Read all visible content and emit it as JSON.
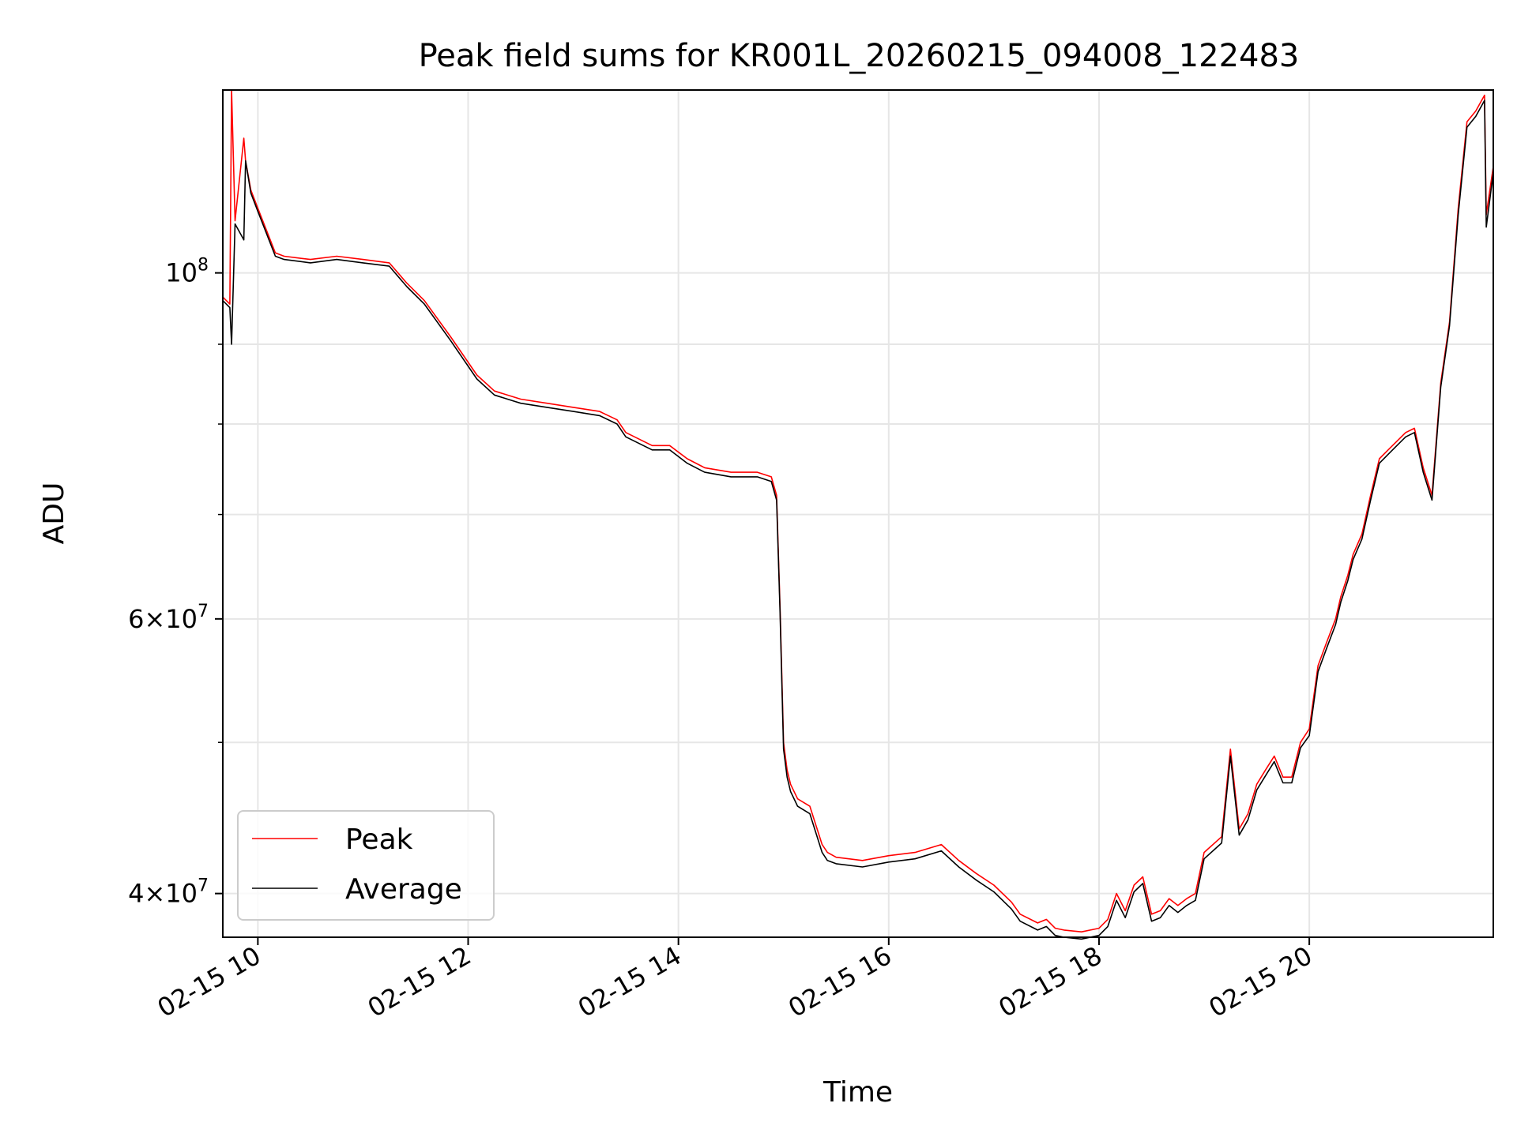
{
  "chart_data": {
    "type": "line",
    "title": "Peak field sums for KR001L_20260215_094008_122483",
    "xlabel": "Time",
    "ylabel": "ADU",
    "x_scale": "time",
    "y_scale": "log",
    "xlim": [
      "2026-02-15 09:40",
      "2026-02-15 21:45"
    ],
    "ylim": [
      37500000,
      131000000
    ],
    "grid": true,
    "legend_position": "lower-left",
    "x_ticks": [
      {
        "value": "2026-02-15 10:00",
        "label": "02-15 10"
      },
      {
        "value": "2026-02-15 12:00",
        "label": "02-15 12"
      },
      {
        "value": "2026-02-15 14:00",
        "label": "02-15 14"
      },
      {
        "value": "2026-02-15 16:00",
        "label": "02-15 16"
      },
      {
        "value": "2026-02-15 18:00",
        "label": "02-15 18"
      },
      {
        "value": "2026-02-15 20:00",
        "label": "02-15 20"
      }
    ],
    "y_ticks_major": [
      {
        "value": 40000000,
        "base": "4",
        "exp": "7"
      },
      {
        "value": 60000000,
        "base": "6",
        "exp": "7"
      },
      {
        "value": 100000000,
        "base": "",
        "exp": "8"
      }
    ],
    "y_ticks_minor": [
      50000000,
      70000000,
      80000000,
      90000000
    ],
    "series": [
      {
        "name": "Peak",
        "color": "#ff0000",
        "x": [
          "2026-02-15 09:40",
          "2026-02-15 09:44",
          "2026-02-15 09:45",
          "2026-02-15 09:47",
          "2026-02-15 09:52",
          "2026-02-15 09:53",
          "2026-02-15 09:56",
          "2026-02-15 10:00",
          "2026-02-15 10:10",
          "2026-02-15 10:15",
          "2026-02-15 10:30",
          "2026-02-15 10:45",
          "2026-02-15 11:00",
          "2026-02-15 11:15",
          "2026-02-15 11:25",
          "2026-02-15 11:35",
          "2026-02-15 11:50",
          "2026-02-15 12:05",
          "2026-02-15 12:15",
          "2026-02-15 12:30",
          "2026-02-15 12:45",
          "2026-02-15 13:00",
          "2026-02-15 13:15",
          "2026-02-15 13:25",
          "2026-02-15 13:30",
          "2026-02-15 13:45",
          "2026-02-15 13:55",
          "2026-02-15 14:05",
          "2026-02-15 14:15",
          "2026-02-15 14:30",
          "2026-02-15 14:45",
          "2026-02-15 14:53",
          "2026-02-15 14:56",
          "2026-02-15 14:58",
          "2026-02-15 15:00",
          "2026-02-15 15:02",
          "2026-02-15 15:04",
          "2026-02-15 15:08",
          "2026-02-15 15:15",
          "2026-02-15 15:22",
          "2026-02-15 15:25",
          "2026-02-15 15:30",
          "2026-02-15 15:45",
          "2026-02-15 16:00",
          "2026-02-15 16:15",
          "2026-02-15 16:30",
          "2026-02-15 16:40",
          "2026-02-15 16:50",
          "2026-02-15 17:00",
          "2026-02-15 17:10",
          "2026-02-15 17:15",
          "2026-02-15 17:25",
          "2026-02-15 17:30",
          "2026-02-15 17:35",
          "2026-02-15 17:40",
          "2026-02-15 17:50",
          "2026-02-15 18:00",
          "2026-02-15 18:05",
          "2026-02-15 18:10",
          "2026-02-15 18:15",
          "2026-02-15 18:20",
          "2026-02-15 18:25",
          "2026-02-15 18:30",
          "2026-02-15 18:35",
          "2026-02-15 18:40",
          "2026-02-15 18:45",
          "2026-02-15 18:50",
          "2026-02-15 18:55",
          "2026-02-15 19:00",
          "2026-02-15 19:10",
          "2026-02-15 19:15",
          "2026-02-15 19:20",
          "2026-02-15 19:25",
          "2026-02-15 19:30",
          "2026-02-15 19:35",
          "2026-02-15 19:40",
          "2026-02-15 19:45",
          "2026-02-15 19:50",
          "2026-02-15 19:55",
          "2026-02-15 20:00",
          "2026-02-15 20:05",
          "2026-02-15 20:10",
          "2026-02-15 20:15",
          "2026-02-15 20:18",
          "2026-02-15 20:22",
          "2026-02-15 20:25",
          "2026-02-15 20:30",
          "2026-02-15 20:35",
          "2026-02-15 20:40",
          "2026-02-15 20:45",
          "2026-02-15 20:50",
          "2026-02-15 20:55",
          "2026-02-15 21:00",
          "2026-02-15 21:05",
          "2026-02-15 21:10",
          "2026-02-15 21:15",
          "2026-02-15 21:20",
          "2026-02-15 21:25",
          "2026-02-15 21:30",
          "2026-02-15 21:35",
          "2026-02-15 21:40",
          "2026-02-15 21:41",
          "2026-02-15 21:45"
        ],
        "y": [
          96500000,
          95500000,
          131000000,
          108000000,
          122000000,
          118000000,
          113000000,
          110000000,
          103000000,
          102500000,
          102000000,
          102500000,
          102000000,
          101500000,
          98500000,
          96000000,
          91000000,
          86000000,
          84000000,
          83000000,
          82500000,
          82000000,
          81500000,
          80500000,
          79000000,
          77500000,
          77500000,
          76000000,
          75000000,
          74500000,
          74500000,
          74000000,
          72000000,
          61000000,
          50000000,
          48000000,
          47000000,
          46000000,
          45500000,
          43000000,
          42500000,
          42200000,
          42000000,
          42300000,
          42500000,
          43000000,
          42000000,
          41200000,
          40500000,
          39500000,
          38800000,
          38300000,
          38500000,
          38000000,
          37900000,
          37800000,
          38000000,
          38500000,
          40000000,
          39000000,
          40500000,
          41000000,
          38800000,
          39000000,
          39700000,
          39300000,
          39700000,
          40000000,
          42500000,
          43500000,
          49500000,
          44000000,
          45000000,
          47000000,
          48000000,
          49000000,
          47500000,
          47500000,
          50000000,
          51000000,
          56000000,
          58000000,
          60000000,
          62000000,
          64000000,
          66000000,
          68000000,
          72000000,
          76000000,
          77000000,
          78000000,
          79000000,
          79500000,
          75000000,
          72000000,
          85000000,
          93000000,
          110000000,
          125000000,
          127000000,
          130000000,
          109000000,
          117000000
        ]
      },
      {
        "name": "Average",
        "color": "#000000",
        "x": [
          "2026-02-15 09:40",
          "2026-02-15 09:44",
          "2026-02-15 09:45",
          "2026-02-15 09:47",
          "2026-02-15 09:52",
          "2026-02-15 09:53",
          "2026-02-15 09:56",
          "2026-02-15 10:00",
          "2026-02-15 10:10",
          "2026-02-15 10:15",
          "2026-02-15 10:30",
          "2026-02-15 10:45",
          "2026-02-15 11:00",
          "2026-02-15 11:15",
          "2026-02-15 11:25",
          "2026-02-15 11:35",
          "2026-02-15 11:50",
          "2026-02-15 12:05",
          "2026-02-15 12:15",
          "2026-02-15 12:30",
          "2026-02-15 12:45",
          "2026-02-15 13:00",
          "2026-02-15 13:15",
          "2026-02-15 13:25",
          "2026-02-15 13:30",
          "2026-02-15 13:45",
          "2026-02-15 13:55",
          "2026-02-15 14:05",
          "2026-02-15 14:15",
          "2026-02-15 14:30",
          "2026-02-15 14:45",
          "2026-02-15 14:53",
          "2026-02-15 14:56",
          "2026-02-15 14:58",
          "2026-02-15 15:00",
          "2026-02-15 15:02",
          "2026-02-15 15:04",
          "2026-02-15 15:08",
          "2026-02-15 15:15",
          "2026-02-15 15:22",
          "2026-02-15 15:25",
          "2026-02-15 15:30",
          "2026-02-15 15:45",
          "2026-02-15 16:00",
          "2026-02-15 16:15",
          "2026-02-15 16:30",
          "2026-02-15 16:40",
          "2026-02-15 16:50",
          "2026-02-15 17:00",
          "2026-02-15 17:10",
          "2026-02-15 17:15",
          "2026-02-15 17:25",
          "2026-02-15 17:30",
          "2026-02-15 17:35",
          "2026-02-15 17:40",
          "2026-02-15 17:50",
          "2026-02-15 18:00",
          "2026-02-15 18:05",
          "2026-02-15 18:10",
          "2026-02-15 18:15",
          "2026-02-15 18:20",
          "2026-02-15 18:25",
          "2026-02-15 18:30",
          "2026-02-15 18:35",
          "2026-02-15 18:40",
          "2026-02-15 18:45",
          "2026-02-15 18:50",
          "2026-02-15 18:55",
          "2026-02-15 19:00",
          "2026-02-15 19:10",
          "2026-02-15 19:15",
          "2026-02-15 19:20",
          "2026-02-15 19:25",
          "2026-02-15 19:30",
          "2026-02-15 19:35",
          "2026-02-15 19:40",
          "2026-02-15 19:45",
          "2026-02-15 19:50",
          "2026-02-15 19:55",
          "2026-02-15 20:00",
          "2026-02-15 20:05",
          "2026-02-15 20:10",
          "2026-02-15 20:15",
          "2026-02-15 20:18",
          "2026-02-15 20:22",
          "2026-02-15 20:25",
          "2026-02-15 20:30",
          "2026-02-15 20:35",
          "2026-02-15 20:40",
          "2026-02-15 20:45",
          "2026-02-15 20:50",
          "2026-02-15 20:55",
          "2026-02-15 21:00",
          "2026-02-15 21:05",
          "2026-02-15 21:10",
          "2026-02-15 21:15",
          "2026-02-15 21:20",
          "2026-02-15 21:25",
          "2026-02-15 21:30",
          "2026-02-15 21:35",
          "2026-02-15 21:40",
          "2026-02-15 21:41",
          "2026-02-15 21:45"
        ],
        "y": [
          96000000,
          95000000,
          90000000,
          107500000,
          105000000,
          118000000,
          112500000,
          109500000,
          102500000,
          102000000,
          101500000,
          102000000,
          101500000,
          101000000,
          98000000,
          95500000,
          90500000,
          85500000,
          83500000,
          82500000,
          82000000,
          81500000,
          81000000,
          80000000,
          78500000,
          77000000,
          77000000,
          75500000,
          74500000,
          74000000,
          74000000,
          73500000,
          71500000,
          60500000,
          49500000,
          47500000,
          46500000,
          45500000,
          45000000,
          42500000,
          42000000,
          41800000,
          41600000,
          41900000,
          42100000,
          42600000,
          41600000,
          40800000,
          40100000,
          39100000,
          38400000,
          37900000,
          38100000,
          37600000,
          37500000,
          37400000,
          37600000,
          38100000,
          39600000,
          38600000,
          40100000,
          40600000,
          38400000,
          38600000,
          39300000,
          38900000,
          39300000,
          39600000,
          42100000,
          43100000,
          49000000,
          43600000,
          44600000,
          46600000,
          47600000,
          48600000,
          47100000,
          47100000,
          49600000,
          50500000,
          55500000,
          57500000,
          59500000,
          61500000,
          63500000,
          65500000,
          67500000,
          71500000,
          75500000,
          76500000,
          77500000,
          78500000,
          79000000,
          74500000,
          71500000,
          84500000,
          92500000,
          109000000,
          124000000,
          126000000,
          129000000,
          107000000,
          116000000
        ]
      }
    ]
  }
}
